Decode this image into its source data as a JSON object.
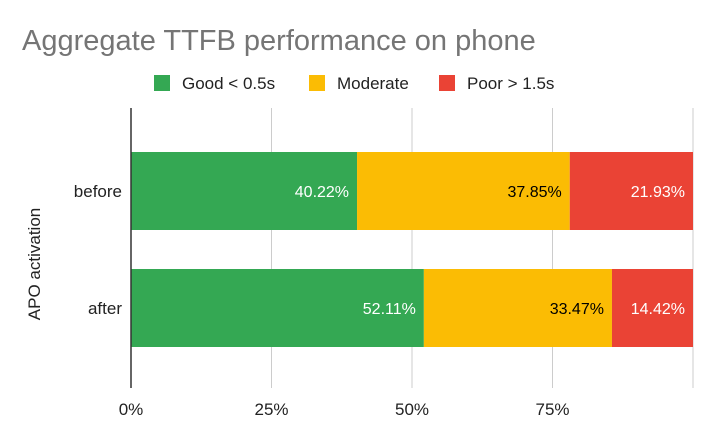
{
  "chart_data": {
    "type": "bar",
    "orientation": "horizontal",
    "stacked": "percent",
    "title": "Aggregate TTFB performance on phone",
    "ylabel": "APO activation",
    "xlabel": "",
    "categories": [
      "before",
      "after"
    ],
    "series": [
      {
        "name": "Good < 0.5s",
        "values": [
          40.22,
          52.11
        ],
        "labels": [
          "40.22%",
          "52.11%"
        ],
        "color": "#34a853",
        "label_color": "#ffffff"
      },
      {
        "name": "Moderate",
        "values": [
          37.85,
          33.47
        ],
        "labels": [
          "37.85%",
          "33.47%"
        ],
        "color": "#fbbc04",
        "label_color": "#000000"
      },
      {
        "name": "Poor > 1.5s",
        "values": [
          21.93,
          14.42
        ],
        "labels": [
          "21.93%",
          "14.42%"
        ],
        "color": "#ea4335",
        "label_color": "#ffffff"
      }
    ],
    "xticks": [
      {
        "value": 0,
        "label": "0%"
      },
      {
        "value": 25,
        "label": "25%"
      },
      {
        "value": 50,
        "label": "50%"
      },
      {
        "value": 75,
        "label": "75%"
      },
      {
        "value": 100,
        "label": ""
      }
    ],
    "xlim": [
      0,
      100
    ],
    "grid": true,
    "legend": "top-center",
    "colors": {
      "title": "#757575",
      "text": "#222222",
      "grid": "#cccccc",
      "axis": "#333333"
    }
  }
}
